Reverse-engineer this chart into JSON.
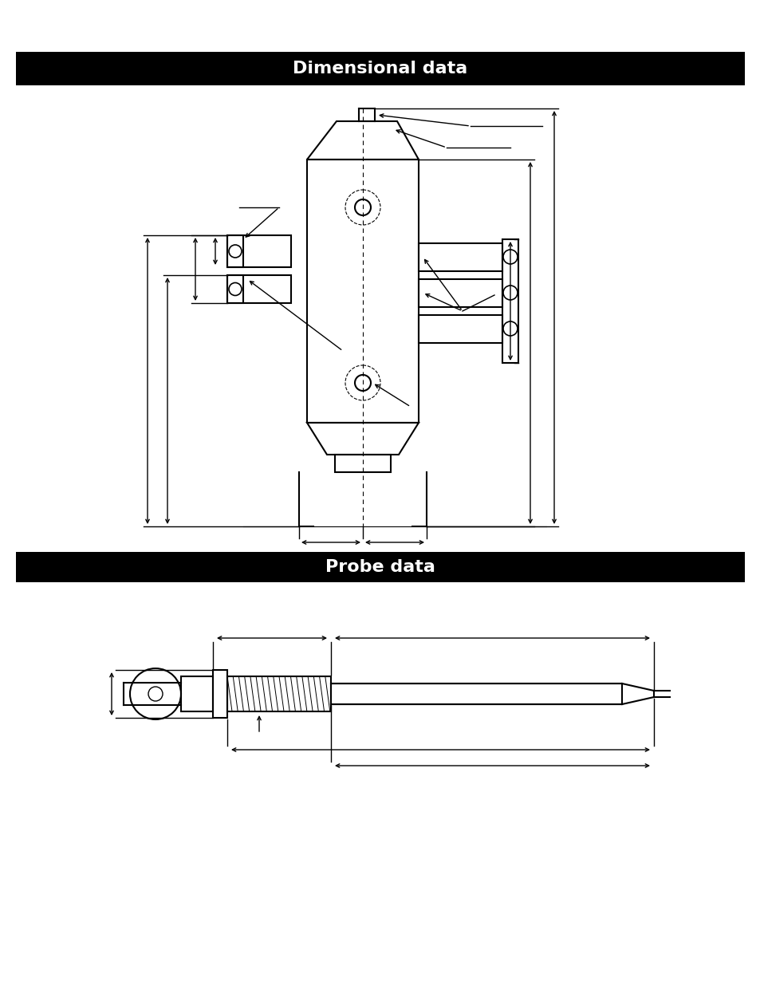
{
  "bg_color": "#ffffff",
  "header1_text": "Dimensional data",
  "header2_text": "Probe data",
  "header_bg": "#000000",
  "header_text_color": "#ffffff",
  "fig_width": 9.54,
  "fig_height": 12.35,
  "lw_body": 1.5,
  "lw_dim": 1.0,
  "lw_dash": 0.8,
  "dim_color": "#000000"
}
